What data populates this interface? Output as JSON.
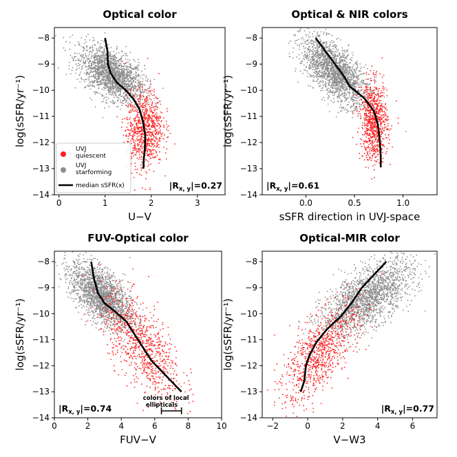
{
  "colors": {
    "quiescent": "#ff2020",
    "starforming": "#8c8c8c",
    "median": "#000000"
  },
  "legend": {
    "quiescent_label_1": "UVJ",
    "quiescent_label_2": "quiescent",
    "starforming_label_1": "UVJ",
    "starforming_label_2": "starforming",
    "median_label": "median sSFR(x)"
  },
  "chart_data": [
    {
      "type": "scatter",
      "title": "Optical color",
      "xlabel": "U−V",
      "ylabel": "log(sSFR/yr⁻¹)",
      "xlim": [
        -0.1,
        3.6
      ],
      "ylim": [
        -14,
        -7.6
      ],
      "xticks": [
        0,
        1,
        2,
        3
      ],
      "xtick_labels": [
        "0",
        "1",
        "2",
        "3"
      ],
      "yticks": [
        -14,
        -13,
        -12,
        -11,
        -10,
        -9,
        -8
      ],
      "ytick_labels": [
        "−14",
        "−13",
        "−12",
        "−11",
        "−10",
        "−9",
        "−8"
      ],
      "annotation": "|R",
      "annotation_sub": "x, y",
      "annotation_value": "|=0.27",
      "annotation_pos": "bottom-right",
      "legend": "lower-left",
      "median": {
        "x": [
          1.0,
          1.05,
          1.06,
          1.12,
          1.25,
          1.45,
          1.62,
          1.75,
          1.82,
          1.87,
          1.86,
          1.84,
          1.83
        ],
        "y": [
          -8.0,
          -8.5,
          -9.0,
          -9.35,
          -9.7,
          -10.0,
          -10.35,
          -10.75,
          -11.2,
          -11.75,
          -12.3,
          -12.6,
          -13.0
        ]
      },
      "starforming_cloud": {
        "center": [
          1.15,
          -9.4
        ],
        "spread": [
          0.35,
          0.45
        ],
        "tilt": -0.8
      },
      "quiescent_cloud": {
        "center": [
          1.85,
          -11.5
        ],
        "spread": [
          0.2,
          0.75
        ],
        "tilt": 0.3
      }
    },
    {
      "type": "scatter",
      "title": "Optical & NIR colors",
      "xlabel": "sSFR direction in UVJ-space",
      "ylabel": "log(sSFR/yr⁻¹)",
      "xlim": [
        -0.45,
        1.35
      ],
      "ylim": [
        -14,
        -7.6
      ],
      "xticks": [
        0,
        0.5,
        1
      ],
      "xtick_labels": [
        "0.0",
        "0.5",
        "1.0"
      ],
      "yticks": [
        -14,
        -13,
        -12,
        -11,
        -10,
        -9,
        -8
      ],
      "ytick_labels": [
        "−14",
        "−13",
        "−12",
        "−11",
        "−10",
        "−9",
        "−8"
      ],
      "annotation": "|R",
      "annotation_sub": "x, y",
      "annotation_value": "|=0.61",
      "annotation_pos": "bottom-left",
      "median": {
        "x": [
          0.1,
          0.2,
          0.3,
          0.38,
          0.45,
          0.6,
          0.7,
          0.74,
          0.76,
          0.77,
          0.77
        ],
        "y": [
          -8.0,
          -8.5,
          -9.0,
          -9.4,
          -9.85,
          -10.3,
          -10.8,
          -11.3,
          -11.9,
          -12.5,
          -12.95
        ]
      },
      "starforming_cloud": {
        "center": [
          0.3,
          -9.3
        ],
        "spread": [
          0.17,
          0.5
        ],
        "tilt": -2.5
      },
      "quiescent_cloud": {
        "center": [
          0.7,
          -11.2
        ],
        "spread": [
          0.07,
          0.75
        ],
        "tilt": -0.5
      }
    },
    {
      "type": "scatter",
      "title": "FUV-Optical color",
      "xlabel": "FUV−V",
      "ylabel": "log(sSFR/yr⁻¹)",
      "xlim": [
        0,
        10
      ],
      "ylim": [
        -14,
        -7.6
      ],
      "xticks": [
        0,
        2,
        4,
        6,
        8,
        10
      ],
      "xtick_labels": [
        "0",
        "2",
        "4",
        "6",
        "8",
        "10"
      ],
      "yticks": [
        -14,
        -13,
        -12,
        -11,
        -10,
        -9,
        -8
      ],
      "ytick_labels": [
        "−14",
        "−13",
        "−12",
        "−11",
        "−10",
        "−9",
        "−8"
      ],
      "annotation": "|R",
      "annotation_sub": "x, y",
      "annotation_value": "|=0.74",
      "annotation_pos": "bottom-left",
      "note_line_1": "colors of local",
      "note_line_2": "ellipticals",
      "note_range": [
        6.4,
        7.6
      ],
      "median": {
        "x": [
          2.2,
          2.35,
          2.6,
          3.0,
          3.6,
          4.3,
          4.8,
          5.3,
          5.8,
          6.4,
          7.0,
          7.6
        ],
        "y": [
          -8.0,
          -8.6,
          -9.2,
          -9.6,
          -9.9,
          -10.3,
          -10.8,
          -11.3,
          -11.8,
          -12.2,
          -12.6,
          -13.0
        ]
      },
      "starforming_cloud": {
        "center": [
          2.8,
          -9.3
        ],
        "spread": [
          0.9,
          0.5
        ],
        "tilt": -0.4
      },
      "quiescent_cloud": {
        "center": [
          5.2,
          -11.2
        ],
        "spread": [
          1.2,
          0.8
        ],
        "tilt": -0.55
      }
    },
    {
      "type": "scatter",
      "title": "Optical-MIR color",
      "xlabel": "V−W3",
      "ylabel": "log(sSFR/yr⁻¹)",
      "xlim": [
        -2.6,
        7.4
      ],
      "ylim": [
        -14,
        -7.6
      ],
      "xticks": [
        -2,
        0,
        2,
        4,
        6
      ],
      "xtick_labels": [
        "−2",
        "0",
        "2",
        "4",
        "6"
      ],
      "yticks": [
        -14,
        -13,
        -12,
        -11,
        -10,
        -9,
        -8
      ],
      "ytick_labels": [
        "−14",
        "−13",
        "−12",
        "−11",
        "−10",
        "−9",
        "−8"
      ],
      "annotation": "|R",
      "annotation_sub": "x, y",
      "annotation_value": "|=0.77",
      "annotation_pos": "bottom-right",
      "median": {
        "x": [
          -0.4,
          -0.2,
          -0.1,
          0.1,
          0.5,
          1.1,
          1.9,
          2.5,
          3.1,
          3.8,
          4.5
        ],
        "y": [
          -13.0,
          -12.6,
          -12.0,
          -11.6,
          -11.1,
          -10.6,
          -10.1,
          -9.6,
          -9.0,
          -8.5,
          -8.0
        ]
      },
      "starforming_cloud": {
        "center": [
          3.4,
          -9.4
        ],
        "spread": [
          1.3,
          0.55
        ],
        "tilt": 0.35
      },
      "quiescent_cloud": {
        "center": [
          0.7,
          -11.5
        ],
        "spread": [
          1.1,
          0.7
        ],
        "tilt": 0.6
      }
    }
  ]
}
